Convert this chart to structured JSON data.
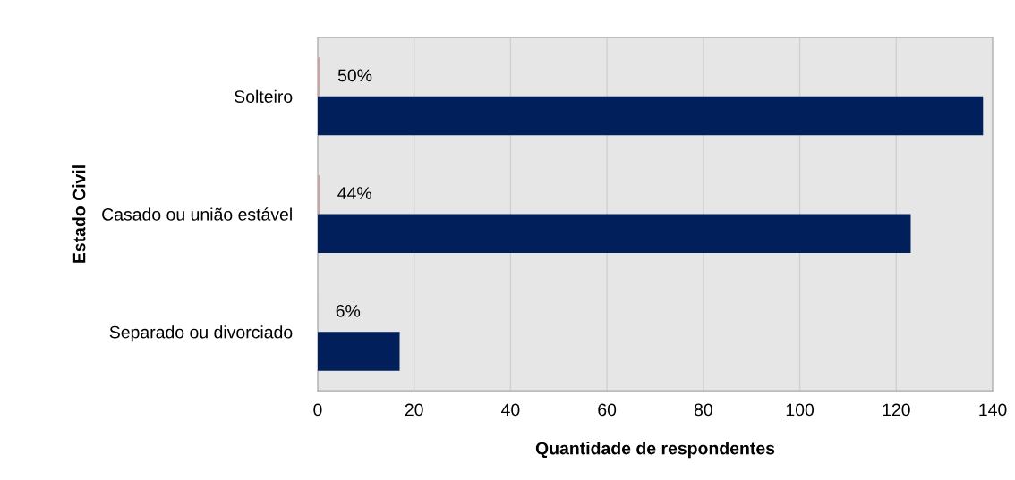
{
  "chart_data": {
    "type": "bar",
    "orientation": "horizontal",
    "xlabel": "Quantidade de respondentes",
    "ylabel": "Estado Civil",
    "categories": [
      "Solteiro",
      "Casado ou união estável",
      "Separado ou divorciado"
    ],
    "series": [
      {
        "color": "#c8a4a4",
        "values": [
          0.5,
          0.44,
          0.06
        ],
        "value_labels": [
          "50%",
          "44%",
          "6%"
        ]
      },
      {
        "color": "#001f5b",
        "values": [
          138,
          123,
          17
        ]
      }
    ],
    "xlim": [
      0,
      140
    ],
    "xticks": [
      0,
      20,
      40,
      60,
      80,
      100,
      120,
      140
    ],
    "grid": "x",
    "legend": false
  }
}
